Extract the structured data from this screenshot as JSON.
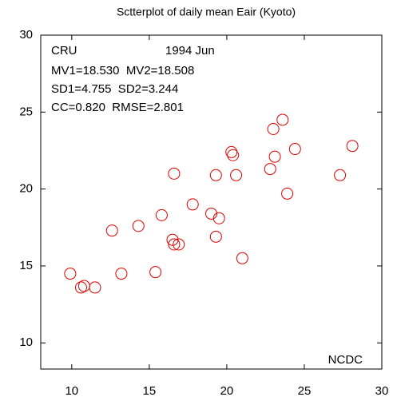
{
  "chart_data": {
    "type": "scatter",
    "title": "Sctterplot of daily mean Eair (Kyoto)",
    "annotations": [
      "CRU",
      "1994 Jun",
      "MV1=18.530  MV2=18.508",
      "SD1=4.755  SD2=3.244",
      "CC=0.820  RMSE=2.801"
    ],
    "xlabel": "NCDC",
    "color": "#e00000",
    "x": [
      9.9,
      10.6,
      10.8,
      11.5,
      12.6,
      13.2,
      14.3,
      15.4,
      15.8,
      16.5,
      16.6,
      16.6,
      16.9,
      17.8,
      19.0,
      19.3,
      19.3,
      19.5,
      20.3,
      20.4,
      20.6,
      21.0,
      22.8,
      23.0,
      23.1,
      23.6,
      23.9,
      24.4,
      27.3,
      28.1
    ],
    "y": [
      14.5,
      13.6,
      13.7,
      13.6,
      17.3,
      14.5,
      17.6,
      14.6,
      18.3,
      16.7,
      21.0,
      16.4,
      16.4,
      19.0,
      18.4,
      16.9,
      20.9,
      18.1,
      22.4,
      22.2,
      20.9,
      15.5,
      21.3,
      23.9,
      22.1,
      24.5,
      19.7,
      22.6,
      20.9,
      22.8
    ],
    "xlim": [
      8,
      30
    ],
    "ylim": [
      8.3,
      30
    ],
    "xticks": [
      10,
      15,
      20,
      25,
      30
    ],
    "yticks": [
      10,
      15,
      20,
      25,
      30
    ]
  }
}
